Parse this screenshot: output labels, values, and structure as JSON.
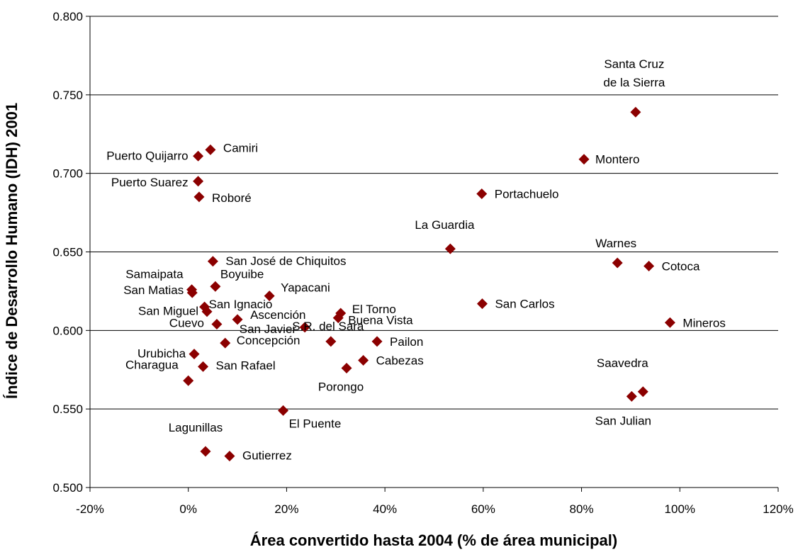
{
  "chart_data": {
    "type": "scatter",
    "title": "",
    "xlabel": "Área convertido hasta 2004 (% de área municipal)",
    "ylabel": "Índice de Desarrollo Humano (IDH) 2001",
    "xlim": [
      -0.2,
      1.2
    ],
    "ylim": [
      0.5,
      0.8
    ],
    "x_ticks": [
      -0.2,
      0,
      0.2,
      0.4,
      0.6,
      0.8,
      1.0,
      1.2
    ],
    "x_tick_labels": [
      "-20%",
      "0%",
      "20%",
      "40%",
      "60%",
      "80%",
      "100%",
      "120%"
    ],
    "y_ticks": [
      0.5,
      0.55,
      0.6,
      0.65,
      0.7,
      0.75,
      0.8
    ],
    "y_tick_labels": [
      "0.500",
      "0.550",
      "0.600",
      "0.650",
      "0.700",
      "0.750",
      "0.800"
    ],
    "grid": "horizontal",
    "marker_color": "#8b0000",
    "points": [
      {
        "label": "Santa Cruz\nde la Sierra",
        "x": 0.91,
        "y": 0.739
      },
      {
        "label": "Montero",
        "x": 0.805,
        "y": 0.709
      },
      {
        "label": "Portachuelo",
        "x": 0.597,
        "y": 0.687
      },
      {
        "label": "La Guardia",
        "x": 0.533,
        "y": 0.652
      },
      {
        "label": "Warnes",
        "x": 0.873,
        "y": 0.643
      },
      {
        "label": "Cotoca",
        "x": 0.937,
        "y": 0.641
      },
      {
        "label": "San Carlos",
        "x": 0.598,
        "y": 0.617
      },
      {
        "label": "Mineros",
        "x": 0.98,
        "y": 0.605
      },
      {
        "label": "Saavedra",
        "x": 0.925,
        "y": 0.561
      },
      {
        "label": "San Julian",
        "x": 0.902,
        "y": 0.558
      },
      {
        "label": "Puerto Quijarro",
        "x": 0.02,
        "y": 0.711
      },
      {
        "label": "Camiri",
        "x": 0.045,
        "y": 0.715
      },
      {
        "label": "Puerto Suarez",
        "x": 0.02,
        "y": 0.695
      },
      {
        "label": "Roboré",
        "x": 0.022,
        "y": 0.685
      },
      {
        "label": "San José de Chiquitos",
        "x": 0.05,
        "y": 0.644
      },
      {
        "label": "Boyuibe",
        "x": 0.055,
        "y": 0.628
      },
      {
        "label": "Samaipata",
        "x": 0.007,
        "y": 0.626
      },
      {
        "label": "San Matias",
        "x": 0.008,
        "y": 0.624
      },
      {
        "label": "Yapacani",
        "x": 0.165,
        "y": 0.622
      },
      {
        "label": "San Ignacio",
        "x": 0.033,
        "y": 0.615
      },
      {
        "label": "San Miguel",
        "x": 0.038,
        "y": 0.612
      },
      {
        "label": "El Torno",
        "x": 0.31,
        "y": 0.611
      },
      {
        "label": "Buena Vista",
        "x": 0.305,
        "y": 0.608
      },
      {
        "label": "Ascención",
        "x": 0.1,
        "y": 0.607
      },
      {
        "label": "Cuevo",
        "x": 0.058,
        "y": 0.604
      },
      {
        "label": "San Javier",
        "x": 0.237,
        "y": 0.602
      },
      {
        "label": "Concepción",
        "x": 0.075,
        "y": 0.592
      },
      {
        "label": "Pailon",
        "x": 0.384,
        "y": 0.593
      },
      {
        "label": "S.R. del Sara",
        "x": 0.29,
        "y": 0.593
      },
      {
        "label": "Cabezas",
        "x": 0.356,
        "y": 0.581
      },
      {
        "label": "Porongo",
        "x": 0.322,
        "y": 0.576
      },
      {
        "label": "Urubicha",
        "x": 0.012,
        "y": 0.585
      },
      {
        "label": "San Rafael",
        "x": 0.03,
        "y": 0.577
      },
      {
        "label": "Charagua",
        "x": 0.0,
        "y": 0.568
      },
      {
        "label": "El Puente",
        "x": 0.193,
        "y": 0.549
      },
      {
        "label": "Lagunillas",
        "x": 0.035,
        "y": 0.523
      },
      {
        "label": "Gutierrez",
        "x": 0.084,
        "y": 0.52
      }
    ]
  }
}
